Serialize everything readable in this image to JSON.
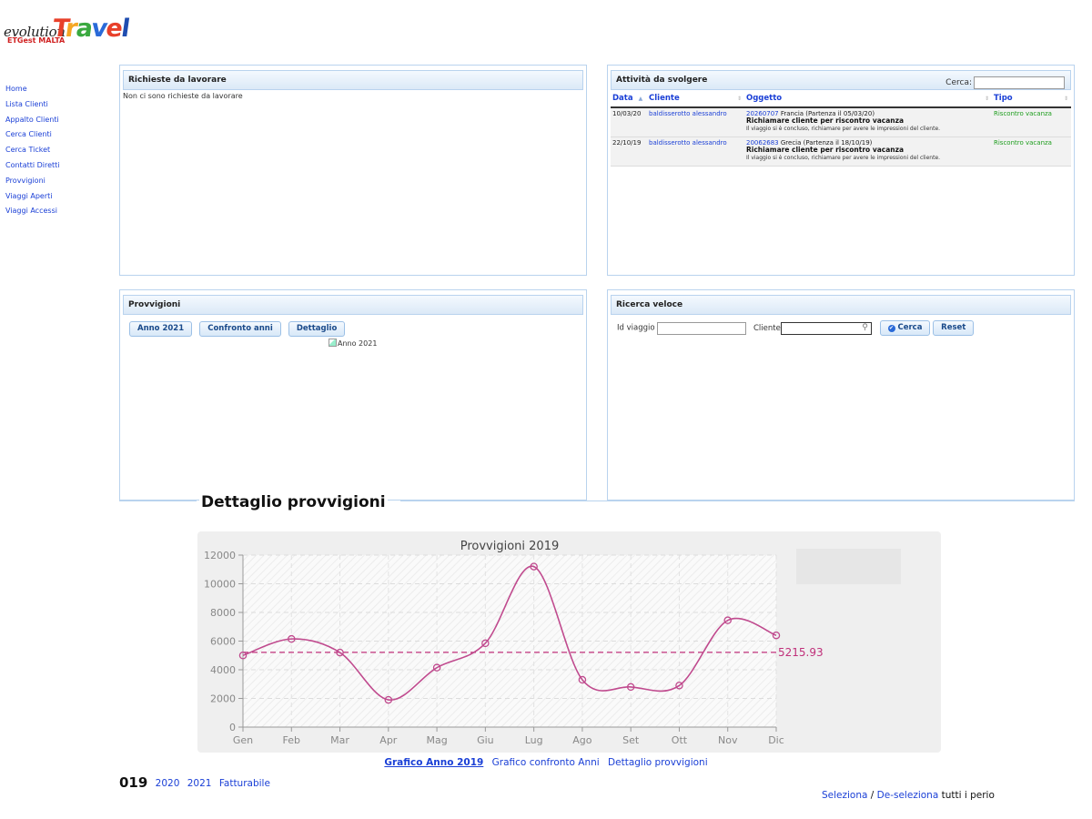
{
  "logo": {
    "prefix": "evolution",
    "brand_letters": [
      "T",
      "r",
      "a",
      "v",
      "e",
      "l"
    ],
    "subtitle": "ETGest MALTA"
  },
  "sidebar": {
    "items": [
      {
        "label": "Home"
      },
      {
        "label": "Lista Clienti"
      },
      {
        "label": "Appalto Clienti"
      },
      {
        "label": "Cerca Clienti"
      },
      {
        "label": "Cerca Ticket"
      },
      {
        "label": "Contatti Diretti"
      },
      {
        "label": "Provvigioni"
      },
      {
        "label": "Viaggi Aperti"
      },
      {
        "label": "Viaggi Accessi"
      }
    ]
  },
  "richieste": {
    "title": "Richieste da lavorare",
    "empty_text": "Non ci sono richieste da lavorare"
  },
  "attivita": {
    "title": "Attività da svolgere",
    "search_label": "Cerca:",
    "search_value": "",
    "columns": [
      "Data",
      "Cliente",
      "Oggetto",
      "Tipo"
    ],
    "rows": [
      {
        "data": "10/03/20",
        "cliente": "baldisserotto alessandro",
        "code": "20260707",
        "dest": " Francia (Partenza il 05/03/20)",
        "action": "Richiamare cliente per riscontro vacanza",
        "note": "Il viaggio si è concluso, richiamare per avere le impressioni del cliente.",
        "tipo": "Riscontro vacanza"
      },
      {
        "data": "22/10/19",
        "cliente": "baldisserotto alessandro",
        "code": "20062683",
        "dest": " Grecia (Partenza il 18/10/19)",
        "action": "Richiamare cliente per riscontro vacanza",
        "note": "Il viaggio si è concluso, richiamare per avere le impressioni del cliente.",
        "tipo": "Riscontro vacanza"
      }
    ]
  },
  "provvigioni": {
    "title": "Provvigioni",
    "buttons": [
      "Anno 2021",
      "Confronto anni",
      "Dettaglio"
    ],
    "image_alt": "Anno 2021"
  },
  "ricerca": {
    "title": "Ricerca veloce",
    "id_label": "Id viaggio",
    "id_value": "",
    "cliente_label": "Cliente",
    "cliente_value": "",
    "search_button": "Cerca",
    "reset_button": "Reset"
  },
  "dettaglio": {
    "title": "Dettaglio provvigioni",
    "chart_links": [
      "Grafico Anno 2019",
      "Grafico confronto Anni",
      "Dettaglio provvigioni"
    ],
    "current_year": "019",
    "year_links": [
      "2020",
      "2021",
      "Fatturabile"
    ],
    "select_text": {
      "seleziona": "Seleziona",
      "sep": " / ",
      "deseleziona": "De-seleziona",
      "rest": " tutti i perio"
    }
  },
  "colors": {
    "series": "#c04a8e",
    "average": "#c0307a",
    "link": "#1a3fd6",
    "panel_border": "#b9d3ee"
  },
  "chart_data": {
    "type": "line",
    "title": "Provvigioni 2019",
    "categories": [
      "Gen",
      "Feb",
      "Mar",
      "Apr",
      "Mag",
      "Giu",
      "Lug",
      "Ago",
      "Set",
      "Ott",
      "Nov",
      "Dic"
    ],
    "series": [
      {
        "values": [
          5000,
          6150,
          5200,
          1900,
          4150,
          5850,
          11200,
          3300,
          2800,
          2900,
          7450,
          6400
        ]
      }
    ],
    "average": {
      "value": 5215.93,
      "label": "5215.93"
    },
    "yticks": [
      0,
      2000,
      4000,
      6000,
      8000,
      10000,
      12000
    ],
    "ylim": [
      0,
      12000
    ],
    "grid": true,
    "smooth": true
  }
}
